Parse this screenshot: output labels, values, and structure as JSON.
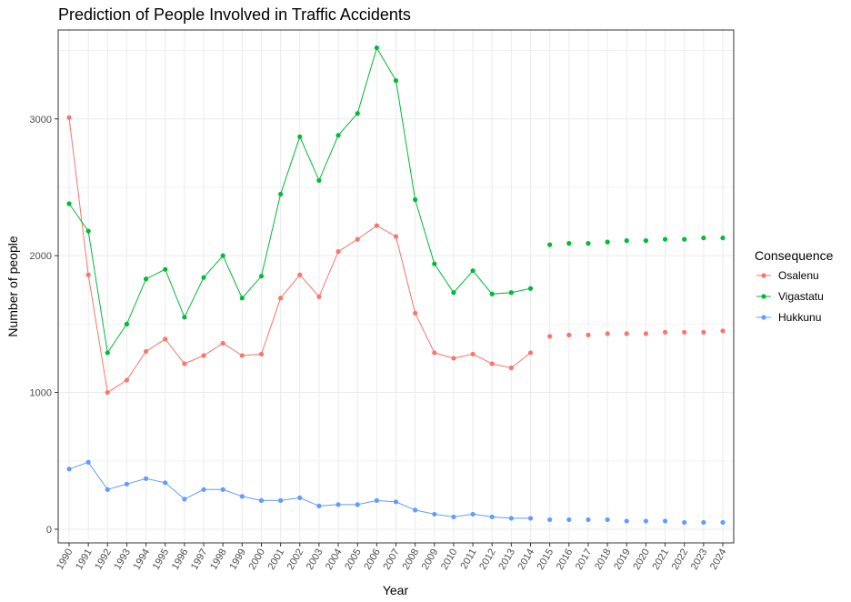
{
  "chart_data": {
    "type": "line",
    "title": "Prediction of People Involved in Traffic Accidents",
    "xlabel": "Year",
    "ylabel": "Number of people",
    "categories": [
      "1990",
      "1991",
      "1992",
      "1993",
      "1994",
      "1995",
      "1996",
      "1997",
      "1998",
      "1999",
      "2000",
      "2001",
      "2002",
      "2003",
      "2004",
      "2005",
      "2006",
      "2007",
      "2008",
      "2009",
      "2010",
      "2011",
      "2012",
      "2013",
      "2014",
      "2015",
      "2016",
      "2017",
      "2018",
      "2019",
      "2020",
      "2021",
      "2022",
      "2023",
      "2024"
    ],
    "ylim": [
      -100,
      3650
    ],
    "yticks": [
      0,
      1000,
      2000,
      3000
    ],
    "yticklabels": [
      "0",
      "1000",
      "2000",
      "3000"
    ],
    "grid": true,
    "legend": {
      "title": "Consequence",
      "position": "right"
    },
    "observed_through": "2014",
    "series": [
      {
        "name": "Osalenu",
        "color": "#F8766D",
        "values": [
          3010,
          1860,
          1000,
          1090,
          1300,
          1390,
          1210,
          1270,
          1360,
          1270,
          1280,
          1690,
          1860,
          1700,
          2030,
          2120,
          2220,
          2140,
          1580,
          1290,
          1250,
          1280,
          1210,
          1180,
          1290,
          1410,
          1420,
          1420,
          1430,
          1430,
          1430,
          1440,
          1440,
          1440,
          1450
        ]
      },
      {
        "name": "Vigastatu",
        "color": "#00BA38",
        "values": [
          2380,
          2180,
          1290,
          1500,
          1830,
          1900,
          1550,
          1840,
          2000,
          1690,
          1850,
          2450,
          2870,
          2550,
          2880,
          3040,
          3520,
          3280,
          2410,
          1940,
          1730,
          1890,
          1720,
          1730,
          1760,
          2080,
          2090,
          2090,
          2100,
          2110,
          2110,
          2120,
          2120,
          2130,
          2130
        ]
      },
      {
        "name": "Hukkunu",
        "color": "#619CFF",
        "values": [
          440,
          490,
          290,
          330,
          370,
          340,
          220,
          290,
          290,
          240,
          210,
          210,
          230,
          170,
          180,
          180,
          210,
          200,
          140,
          110,
          90,
          110,
          90,
          80,
          80,
          70,
          70,
          70,
          70,
          60,
          60,
          60,
          50,
          50,
          50
        ]
      }
    ]
  }
}
